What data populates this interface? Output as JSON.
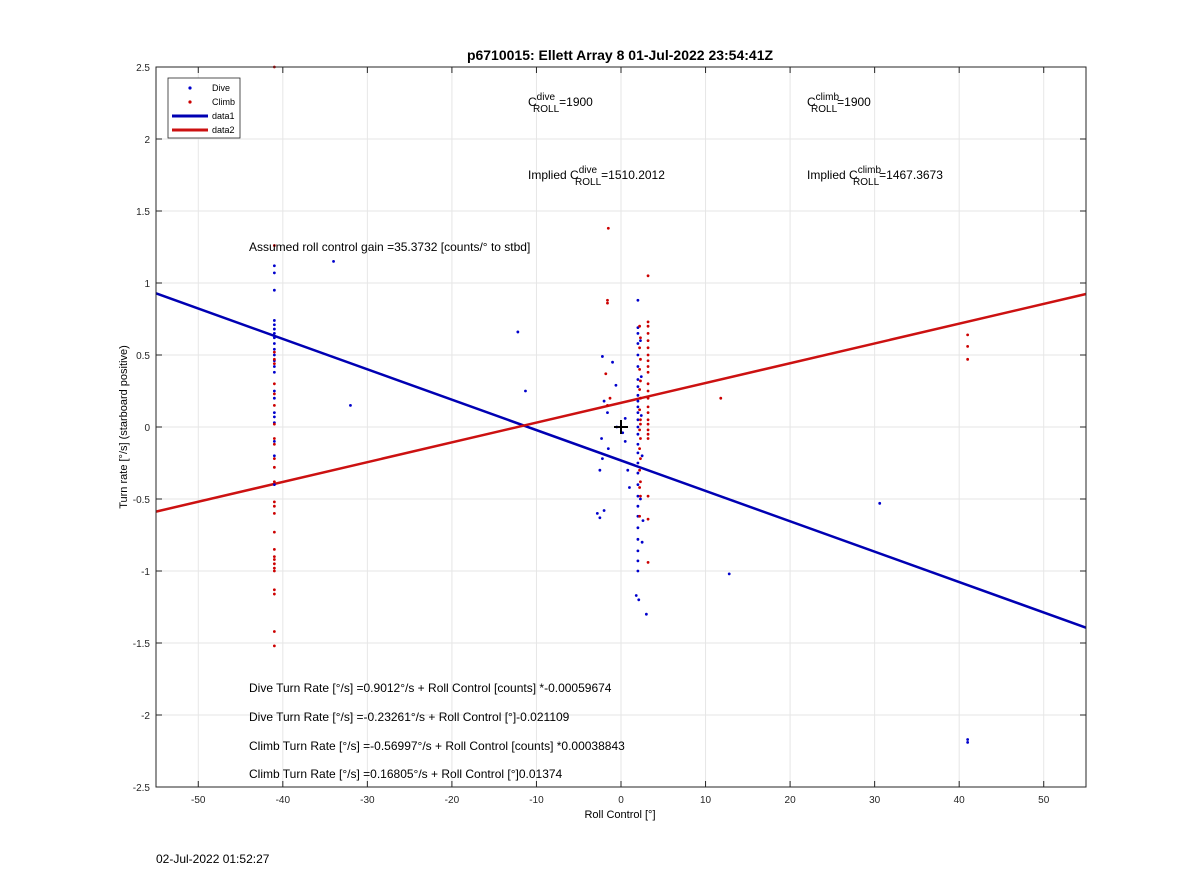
{
  "footer_timestamp": "02-Jul-2022 01:52:27",
  "chart_data": {
    "type": "scatter",
    "title": "p6710015: Ellett Array 8 01-Jul-2022 23:54:41Z",
    "xlabel": "Roll Control [°]",
    "ylabel": "Turn rate [°/s] (starboard positive)",
    "xlim": [
      -55,
      55
    ],
    "ylim": [
      -2.5,
      2.5
    ],
    "xticks": [
      -50,
      -40,
      -30,
      -20,
      -10,
      0,
      10,
      20,
      30,
      40,
      50
    ],
    "yticks": [
      -2.5,
      -2,
      -1.5,
      -1,
      -0.5,
      0,
      0.5,
      1,
      1.5,
      2,
      2.5
    ],
    "xtick_labels": [
      "-50",
      "-40",
      "-30",
      "-20",
      "-10",
      "0",
      "10",
      "20",
      "30",
      "40",
      "50"
    ],
    "ytick_labels": [
      "-2.5",
      "-2",
      "-1.5",
      "-1",
      "-0.5",
      "0",
      "0.5",
      "1",
      "1.5",
      "2",
      "2.5"
    ],
    "grid": true,
    "legend_position": "top-left",
    "legend": [
      {
        "label": "Dive",
        "kind": "marker",
        "color": "#0000cc"
      },
      {
        "label": "Climb",
        "kind": "marker",
        "color": "#cc0000"
      },
      {
        "label": "data1",
        "kind": "line",
        "color": "#0000b3"
      },
      {
        "label": "data2",
        "kind": "line",
        "color": "#cc1111"
      }
    ],
    "fit_lines": [
      {
        "name": "data1",
        "color": "#0000b3",
        "intercept": -0.23261,
        "slope": -0.021109
      },
      {
        "name": "data2",
        "color": "#cc1111",
        "intercept": 0.16805,
        "slope": 0.01374
      }
    ],
    "center_marker": {
      "x": 0,
      "y": 0
    },
    "series": [
      {
        "name": "Dive",
        "color": "#0000cc",
        "points": [
          [
            -41,
            1.12
          ],
          [
            -41,
            1.07
          ],
          [
            -41,
            0.95
          ],
          [
            -41,
            0.74
          ],
          [
            -41,
            0.71
          ],
          [
            -41,
            0.68
          ],
          [
            -41,
            0.65
          ],
          [
            -41,
            0.62
          ],
          [
            -41,
            0.58
          ],
          [
            -41,
            0.54
          ],
          [
            -41,
            0.5
          ],
          [
            -41,
            0.46
          ],
          [
            -41,
            0.42
          ],
          [
            -41,
            0.38
          ],
          [
            -41,
            0.25
          ],
          [
            -41,
            0.2
          ],
          [
            -41,
            0.1
          ],
          [
            -41,
            0.07
          ],
          [
            -41,
            0.03
          ],
          [
            -41,
            -0.1
          ],
          [
            -41,
            -0.2
          ],
          [
            -41,
            -0.4
          ],
          [
            -34,
            1.15
          ],
          [
            -32,
            0.15
          ],
          [
            -12.2,
            0.66
          ],
          [
            -11.3,
            0.25
          ],
          [
            -2.2,
            0.49
          ],
          [
            -2,
            0.18
          ],
          [
            -1.6,
            0.1
          ],
          [
            -2.3,
            -0.08
          ],
          [
            -2.2,
            -0.22
          ],
          [
            -2.5,
            -0.3
          ],
          [
            -2.8,
            -0.6
          ],
          [
            -2.5,
            -0.63
          ],
          [
            -2,
            -0.58
          ],
          [
            -1.5,
            -0.15
          ],
          [
            -1,
            0.45
          ],
          [
            -0.6,
            0.29
          ],
          [
            -0.5,
            0
          ],
          [
            0.2,
            -0.04
          ],
          [
            0.5,
            -0.1
          ],
          [
            0.8,
            -0.3
          ],
          [
            1,
            -0.42
          ],
          [
            0.5,
            0.06
          ],
          [
            2,
            0.88
          ],
          [
            2,
            0.69
          ],
          [
            2,
            0.65
          ],
          [
            2,
            0.58
          ],
          [
            2,
            0.5
          ],
          [
            2,
            0.42
          ],
          [
            2,
            0.33
          ],
          [
            2,
            0.28
          ],
          [
            2,
            0.22
          ],
          [
            2,
            0.18
          ],
          [
            2,
            0.14
          ],
          [
            2,
            0.1
          ],
          [
            2,
            0.05
          ],
          [
            2,
            0
          ],
          [
            2,
            -0.05
          ],
          [
            2,
            -0.12
          ],
          [
            2,
            -0.18
          ],
          [
            2,
            -0.25
          ],
          [
            2,
            -0.32
          ],
          [
            2,
            -0.4
          ],
          [
            2,
            -0.48
          ],
          [
            2,
            -0.55
          ],
          [
            2,
            -0.62
          ],
          [
            2,
            -0.7
          ],
          [
            2,
            -0.78
          ],
          [
            2,
            -0.86
          ],
          [
            2,
            -0.93
          ],
          [
            2,
            -1
          ],
          [
            1.8,
            -1.17
          ],
          [
            2.1,
            -1.2
          ],
          [
            2.3,
            0.6
          ],
          [
            2.4,
            0.35
          ],
          [
            2.5,
            -0.2
          ],
          [
            2.6,
            -0.65
          ],
          [
            2.5,
            -0.8
          ],
          [
            2.3,
            -0.5
          ],
          [
            2.4,
            0.08
          ],
          [
            3,
            -1.3
          ],
          [
            12.8,
            -1.02
          ],
          [
            30.6,
            -0.53
          ],
          [
            41,
            -2.17
          ],
          [
            41,
            -2.19
          ]
        ]
      },
      {
        "name": "Climb",
        "color": "#cc0000",
        "points": [
          [
            -41,
            2.5
          ],
          [
            -41,
            1.26
          ],
          [
            -41,
            0.52
          ],
          [
            -41,
            0.47
          ],
          [
            -41,
            0.44
          ],
          [
            -41,
            0.3
          ],
          [
            -41,
            0.23
          ],
          [
            -41,
            0.15
          ],
          [
            -41,
            0.02
          ],
          [
            -41,
            -0.08
          ],
          [
            -41,
            -0.12
          ],
          [
            -41,
            -0.22
          ],
          [
            -41,
            -0.28
          ],
          [
            -41,
            -0.38
          ],
          [
            -41,
            -0.52
          ],
          [
            -41,
            -0.55
          ],
          [
            -41,
            -0.6
          ],
          [
            -41,
            -0.73
          ],
          [
            -41,
            -0.85
          ],
          [
            -41,
            -0.9
          ],
          [
            -41,
            -0.92
          ],
          [
            -41,
            -0.95
          ],
          [
            -41,
            -0.98
          ],
          [
            -41,
            -1
          ],
          [
            -41,
            -1.13
          ],
          [
            -41,
            -1.16
          ],
          [
            -41,
            -1.42
          ],
          [
            -41,
            -1.52
          ],
          [
            -1.5,
            1.38
          ],
          [
            -1.6,
            0.88
          ],
          [
            -1.6,
            0.86
          ],
          [
            -1.8,
            0.37
          ],
          [
            -1.3,
            0.2
          ],
          [
            -1.6,
            0.15
          ],
          [
            2.2,
            0.7
          ],
          [
            2.3,
            0.62
          ],
          [
            2.2,
            0.55
          ],
          [
            2.3,
            0.47
          ],
          [
            2.2,
            0.4
          ],
          [
            2.3,
            0.32
          ],
          [
            2.2,
            0.26
          ],
          [
            2.3,
            0.2
          ],
          [
            2.2,
            0.12
          ],
          [
            2.3,
            0.05
          ],
          [
            2.2,
            -0.02
          ],
          [
            2.3,
            -0.08
          ],
          [
            2.2,
            -0.15
          ],
          [
            2.3,
            -0.22
          ],
          [
            2.2,
            -0.3
          ],
          [
            2.3,
            -0.38
          ],
          [
            2.2,
            -0.42
          ],
          [
            2.3,
            -0.48
          ],
          [
            2.2,
            -0.62
          ],
          [
            2.3,
            0.02
          ],
          [
            3.2,
            1.05
          ],
          [
            3.2,
            0.73
          ],
          [
            3.2,
            0.7
          ],
          [
            3.2,
            0.65
          ],
          [
            3.2,
            0.6
          ],
          [
            3.2,
            0.55
          ],
          [
            3.2,
            0.5
          ],
          [
            3.2,
            0.46
          ],
          [
            3.2,
            0.42
          ],
          [
            3.2,
            0.38
          ],
          [
            3.2,
            0.3
          ],
          [
            3.2,
            0.25
          ],
          [
            3.2,
            0.2
          ],
          [
            3.2,
            0.14
          ],
          [
            3.2,
            0.1
          ],
          [
            3.2,
            0.05
          ],
          [
            3.2,
            0.02
          ],
          [
            3.2,
            -0.02
          ],
          [
            3.2,
            -0.05
          ],
          [
            3.2,
            -0.08
          ],
          [
            3.2,
            -0.48
          ],
          [
            3.2,
            -0.64
          ],
          [
            3.2,
            -0.94
          ],
          [
            11.8,
            0.2
          ],
          [
            41,
            0.64
          ],
          [
            41,
            0.56
          ],
          [
            41,
            0.47
          ]
        ]
      }
    ],
    "annotations": {
      "c_dive": {
        "prefix": "C",
        "sup": "dive",
        "sub": "ROLL",
        "value": "=1900"
      },
      "c_climb": {
        "prefix": "C",
        "sup": "climb",
        "sub": "ROLL",
        "value": "=1900"
      },
      "implied_dive": {
        "prefix": "Implied C",
        "sup": "dive",
        "sub": "ROLL",
        "value": "=1510.2012"
      },
      "implied_climb": {
        "prefix": "Implied C",
        "sup": "climb",
        "sub": "ROLL",
        "value": "=1467.3673"
      },
      "gain": "Assumed roll control gain =35.3732 [counts/° to stbd]",
      "equations": [
        "Dive Turn Rate [°/s] =0.9012°/s + Roll Control [counts] *-0.00059674",
        "Dive Turn Rate [°/s] =-0.23261°/s + Roll Control [°]-0.021109",
        "Climb Turn Rate [°/s] =-0.56997°/s + Roll Control [counts] *0.00038843",
        "Climb Turn Rate [°/s] =0.16805°/s + Roll Control [°]0.01374"
      ]
    }
  }
}
